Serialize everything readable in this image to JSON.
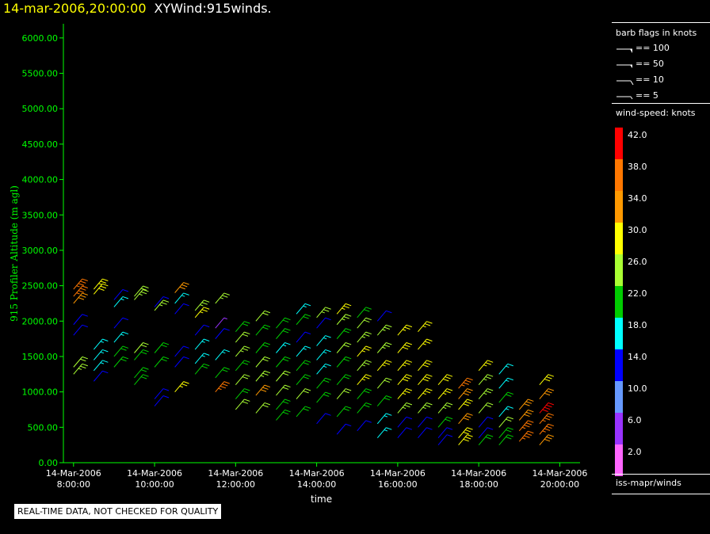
{
  "header": {
    "timestamp": "14-mar-2006,20:00:00",
    "product": "XYWind:915winds."
  },
  "notice": "REAL-TIME DATA, NOT CHECKED FOR QUALITY",
  "legend": {
    "barb_title": "barb flags in knots",
    "barb_items": [
      "== 100",
      "== 50",
      "== 10",
      "== 5"
    ],
    "speed_title": "wind-speed: knots",
    "speed_labels": [
      "42.0",
      "38.0",
      "34.0",
      "30.0",
      "26.0",
      "22.0",
      "18.0",
      "14.0",
      "10.0",
      "6.0",
      "2.0"
    ],
    "speed_colors": [
      "#ff0000",
      "#ff7700",
      "#ff9900",
      "#ffff00",
      "#aaff33",
      "#00cc00",
      "#00ffff",
      "#0000ff",
      "#6699ff",
      "#9933ff",
      "#ff66ff"
    ],
    "source": "iss-mapr/winds"
  },
  "chart_data": {
    "type": "scatter",
    "xlabel": "time",
    "ylabel": "915 Profiler Altitude (m agl)",
    "ylim": [
      0,
      6200
    ],
    "xlim": [
      "14-Mar-2006 07:45",
      "14-Mar-2006 20:30"
    ],
    "yticks": [
      "6000.00",
      "5500.00",
      "5000.00",
      "4500.00",
      "4000.00",
      "3500.00",
      "3000.00",
      "2500.00",
      "2000.00",
      "1500.00",
      "1000.00",
      "500.00",
      "0.00"
    ],
    "xticks": [
      {
        "date": "14-Mar-2006",
        "time": "8:00:00"
      },
      {
        "date": "14-Mar-2006",
        "time": "10:00:00"
      },
      {
        "date": "14-Mar-2006",
        "time": "12:00:00"
      },
      {
        "date": "14-Mar-2006",
        "time": "14:00:00"
      },
      {
        "date": "14-Mar-2006",
        "time": "16:00:00"
      },
      {
        "date": "14-Mar-2006",
        "time": "18:00:00"
      },
      {
        "date": "14-Mar-2006",
        "time": "20:00:00"
      }
    ],
    "axis_color": "#00ff00",
    "profiles": [
      {
        "time": "08:00",
        "points": [
          [
            2450,
            36
          ],
          [
            2350,
            36
          ],
          [
            2250,
            34
          ],
          [
            1950,
            14
          ],
          [
            1800,
            14
          ],
          [
            1350,
            24
          ],
          [
            1250,
            26
          ]
        ]
      },
      {
        "time": "08:30",
        "points": [
          [
            2450,
            28
          ],
          [
            2380,
            30
          ],
          [
            1600,
            18
          ],
          [
            1450,
            18
          ],
          [
            1300,
            16
          ],
          [
            1150,
            14
          ]
        ]
      },
      {
        "time": "09:00",
        "points": [
          [
            2300,
            14
          ],
          [
            2200,
            16
          ],
          [
            1900,
            14
          ],
          [
            1700,
            16
          ],
          [
            1500,
            22
          ],
          [
            1350,
            20
          ]
        ]
      },
      {
        "time": "09:30",
        "points": [
          [
            2350,
            24
          ],
          [
            2300,
            26
          ],
          [
            1550,
            24
          ],
          [
            1450,
            22
          ],
          [
            1200,
            20
          ],
          [
            1100,
            22
          ]
        ]
      },
      {
        "time": "10:00",
        "points": [
          [
            2200,
            14
          ],
          [
            2150,
            26
          ],
          [
            1550,
            20
          ],
          [
            1350,
            22
          ],
          [
            900,
            14
          ],
          [
            800,
            14
          ]
        ]
      },
      {
        "time": "10:30",
        "points": [
          [
            2400,
            34
          ],
          [
            2250,
            16
          ],
          [
            2100,
            14
          ],
          [
            1500,
            14
          ],
          [
            1350,
            14
          ],
          [
            1000,
            28
          ]
        ]
      },
      {
        "time": "11:00",
        "points": [
          [
            2150,
            26
          ],
          [
            2050,
            28
          ],
          [
            1800,
            14
          ],
          [
            1600,
            16
          ],
          [
            1400,
            16
          ],
          [
            1250,
            22
          ]
        ]
      },
      {
        "time": "11:30",
        "points": [
          [
            2250,
            26
          ],
          [
            1900,
            6
          ],
          [
            1750,
            14
          ],
          [
            1450,
            18
          ],
          [
            1200,
            20
          ],
          [
            1000,
            36
          ]
        ]
      },
      {
        "time": "12:00",
        "points": [
          [
            1850,
            22
          ],
          [
            1700,
            24
          ],
          [
            1500,
            26
          ],
          [
            1300,
            22
          ],
          [
            1100,
            24
          ],
          [
            900,
            22
          ],
          [
            750,
            24
          ]
        ]
      },
      {
        "time": "12:30",
        "points": [
          [
            2000,
            24
          ],
          [
            1800,
            20
          ],
          [
            1550,
            22
          ],
          [
            1350,
            24
          ],
          [
            1150,
            26
          ],
          [
            950,
            34
          ],
          [
            700,
            24
          ]
        ]
      },
      {
        "time": "13:00",
        "points": [
          [
            1900,
            20
          ],
          [
            1750,
            20
          ],
          [
            1550,
            18
          ],
          [
            1350,
            22
          ],
          [
            1150,
            24
          ],
          [
            950,
            24
          ],
          [
            750,
            22
          ],
          [
            600,
            22
          ]
        ]
      },
      {
        "time": "13:30",
        "points": [
          [
            2100,
            18
          ],
          [
            1950,
            20
          ],
          [
            1700,
            14
          ],
          [
            1500,
            16
          ],
          [
            1300,
            20
          ],
          [
            1100,
            22
          ],
          [
            900,
            24
          ],
          [
            650,
            22
          ]
        ]
      },
      {
        "time": "14:00",
        "points": [
          [
            2050,
            26
          ],
          [
            1900,
            14
          ],
          [
            1650,
            18
          ],
          [
            1450,
            18
          ],
          [
            1250,
            18
          ],
          [
            1050,
            20
          ],
          [
            850,
            22
          ],
          [
            550,
            14
          ]
        ]
      },
      {
        "time": "14:30",
        "points": [
          [
            2100,
            28
          ],
          [
            1950,
            26
          ],
          [
            1750,
            22
          ],
          [
            1550,
            24
          ],
          [
            1350,
            20
          ],
          [
            1100,
            22
          ],
          [
            900,
            24
          ],
          [
            650,
            22
          ],
          [
            400,
            14
          ]
        ]
      },
      {
        "time": "15:00",
        "points": [
          [
            2050,
            22
          ],
          [
            1900,
            24
          ],
          [
            1700,
            26
          ],
          [
            1500,
            28
          ],
          [
            1300,
            26
          ],
          [
            1100,
            28
          ],
          [
            900,
            22
          ],
          [
            700,
            22
          ],
          [
            450,
            14
          ]
        ]
      },
      {
        "time": "15:30",
        "points": [
          [
            2000,
            14
          ],
          [
            1800,
            26
          ],
          [
            1550,
            26
          ],
          [
            1300,
            28
          ],
          [
            1050,
            24
          ],
          [
            800,
            22
          ],
          [
            550,
            18
          ],
          [
            350,
            18
          ]
        ]
      },
      {
        "time": "16:00",
        "points": [
          [
            1800,
            28
          ],
          [
            1550,
            30
          ],
          [
            1300,
            28
          ],
          [
            1100,
            30
          ],
          [
            900,
            28
          ],
          [
            700,
            26
          ],
          [
            500,
            14
          ],
          [
            350,
            14
          ]
        ]
      },
      {
        "time": "16:30",
        "points": [
          [
            1850,
            28
          ],
          [
            1600,
            28
          ],
          [
            1300,
            30
          ],
          [
            1100,
            30
          ],
          [
            900,
            28
          ],
          [
            700,
            26
          ],
          [
            500,
            14
          ],
          [
            350,
            14
          ]
        ]
      },
      {
        "time": "17:00",
        "points": [
          [
            1100,
            30
          ],
          [
            900,
            28
          ],
          [
            700,
            26
          ],
          [
            500,
            22
          ],
          [
            350,
            14
          ],
          [
            250,
            14
          ]
        ]
      },
      {
        "time": "17:30",
        "points": [
          [
            1050,
            36
          ],
          [
            900,
            34
          ],
          [
            750,
            30
          ],
          [
            550,
            34
          ],
          [
            350,
            30
          ],
          [
            250,
            30
          ]
        ]
      },
      {
        "time": "18:00",
        "points": [
          [
            1300,
            28
          ],
          [
            1100,
            26
          ],
          [
            900,
            26
          ],
          [
            700,
            24
          ],
          [
            500,
            14
          ],
          [
            350,
            14
          ],
          [
            250,
            22
          ]
        ]
      },
      {
        "time": "18:30",
        "points": [
          [
            1250,
            18
          ],
          [
            1050,
            18
          ],
          [
            850,
            22
          ],
          [
            650,
            18
          ],
          [
            500,
            24
          ],
          [
            350,
            22
          ],
          [
            250,
            22
          ]
        ]
      },
      {
        "time": "19:00",
        "points": [
          [
            750,
            34
          ],
          [
            600,
            34
          ],
          [
            450,
            36
          ],
          [
            300,
            36
          ]
        ]
      },
      {
        "time": "19:30",
        "points": [
          [
            1100,
            30
          ],
          [
            900,
            34
          ],
          [
            700,
            40
          ],
          [
            550,
            36
          ],
          [
            400,
            36
          ],
          [
            250,
            34
          ]
        ]
      }
    ]
  }
}
